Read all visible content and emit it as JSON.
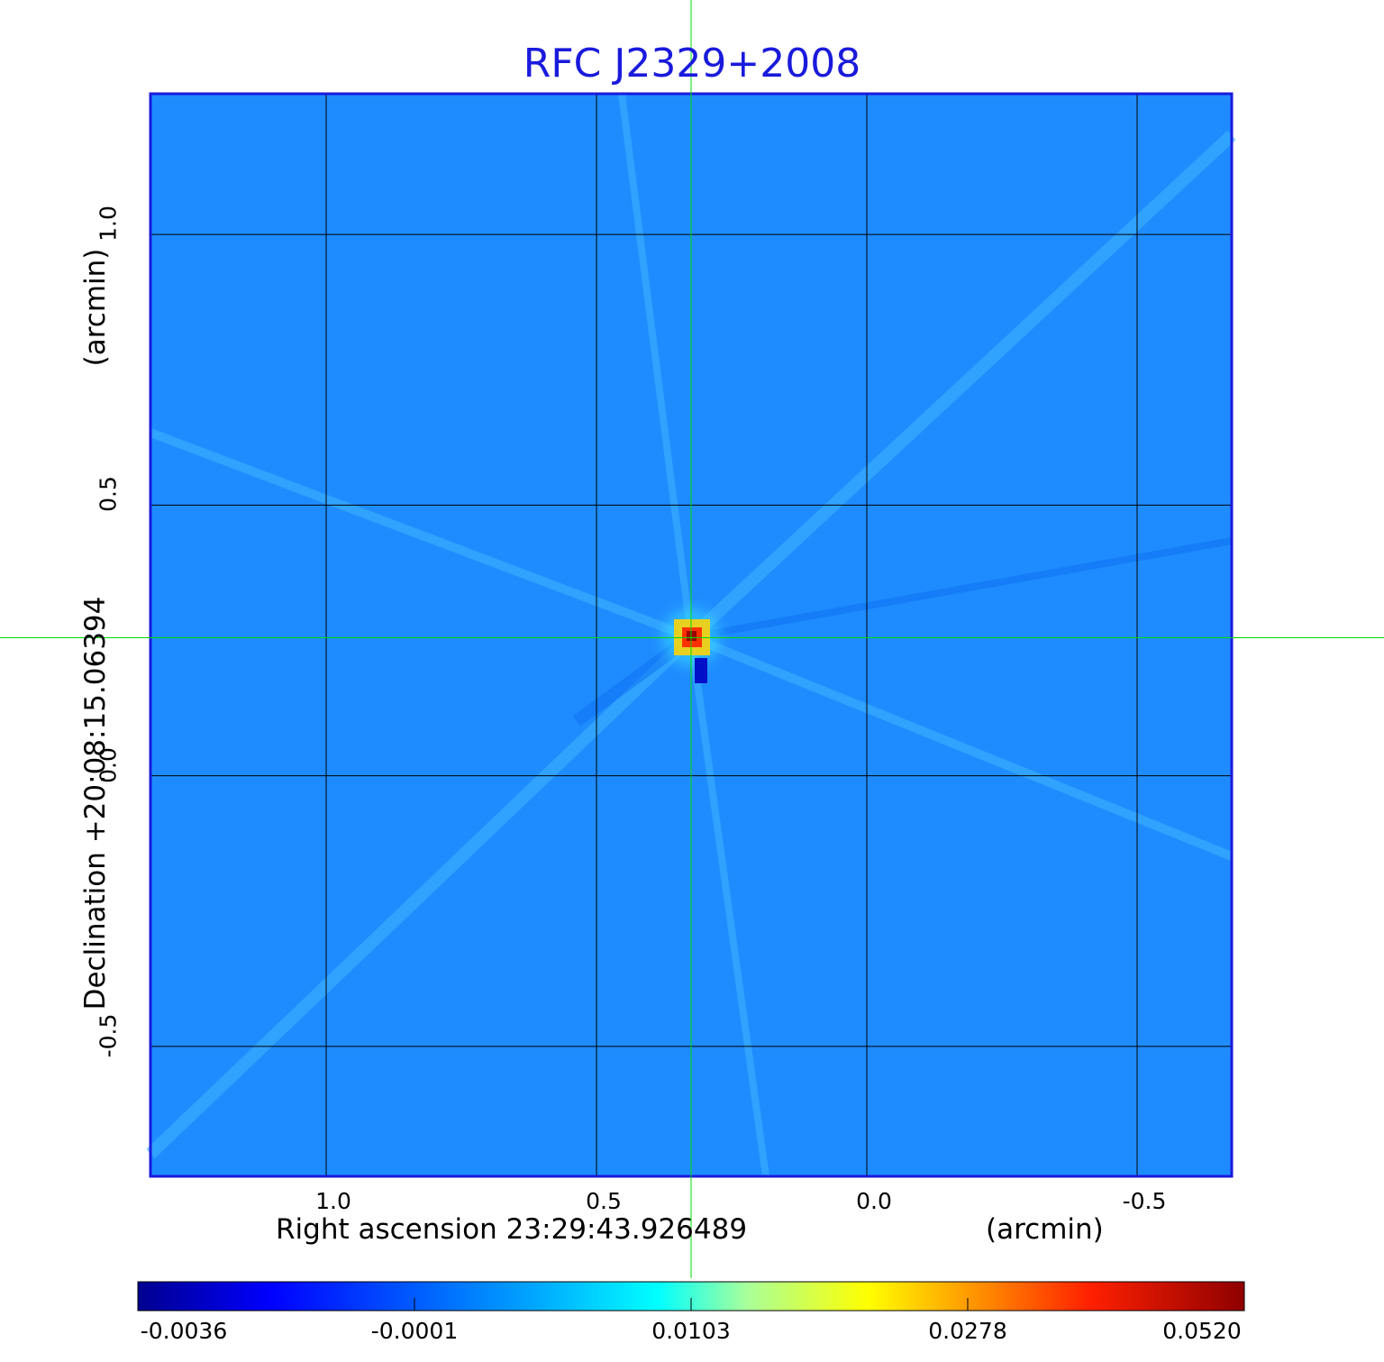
{
  "chart_data": {
    "type": "heatmap",
    "title": "RFC J2329+2008",
    "xlabel": "Right ascension  23:29:43.926489",
    "xunit": "(arcmin)",
    "ylabel": "Declination  +20:08:15.06394",
    "yunit": "(arcmin)",
    "x_ticks": [
      "1.0",
      "0.5",
      "0.0",
      "-0.5"
    ],
    "x_tick_values": [
      1.0,
      0.5,
      0.0,
      -0.5
    ],
    "y_ticks": [
      "1.0",
      "0.5",
      "0.0",
      "-0.5"
    ],
    "y_tick_values": [
      1.0,
      0.5,
      0.0,
      -0.5
    ],
    "xlim": [
      1.325,
      -0.675
    ],
    "ylim": [
      -0.74,
      1.26
    ],
    "grid": true,
    "crosshair": {
      "x": 0.325,
      "y": 0.255,
      "color": "#00dd00"
    },
    "peak": {
      "x": 0.325,
      "y": 0.255,
      "value": 0.052
    },
    "colorbar": {
      "ticks": [
        "-0.0036",
        "-0.0001",
        "0.0103",
        "0.0278",
        "0.0520"
      ],
      "tick_values": [
        -0.0036,
        -0.0001,
        0.0103,
        0.0278,
        0.052
      ],
      "colormap": "jet",
      "range": [
        -0.0036,
        0.052
      ]
    },
    "background_color": "#1e8cff",
    "frame_color": "#1a1adc"
  }
}
